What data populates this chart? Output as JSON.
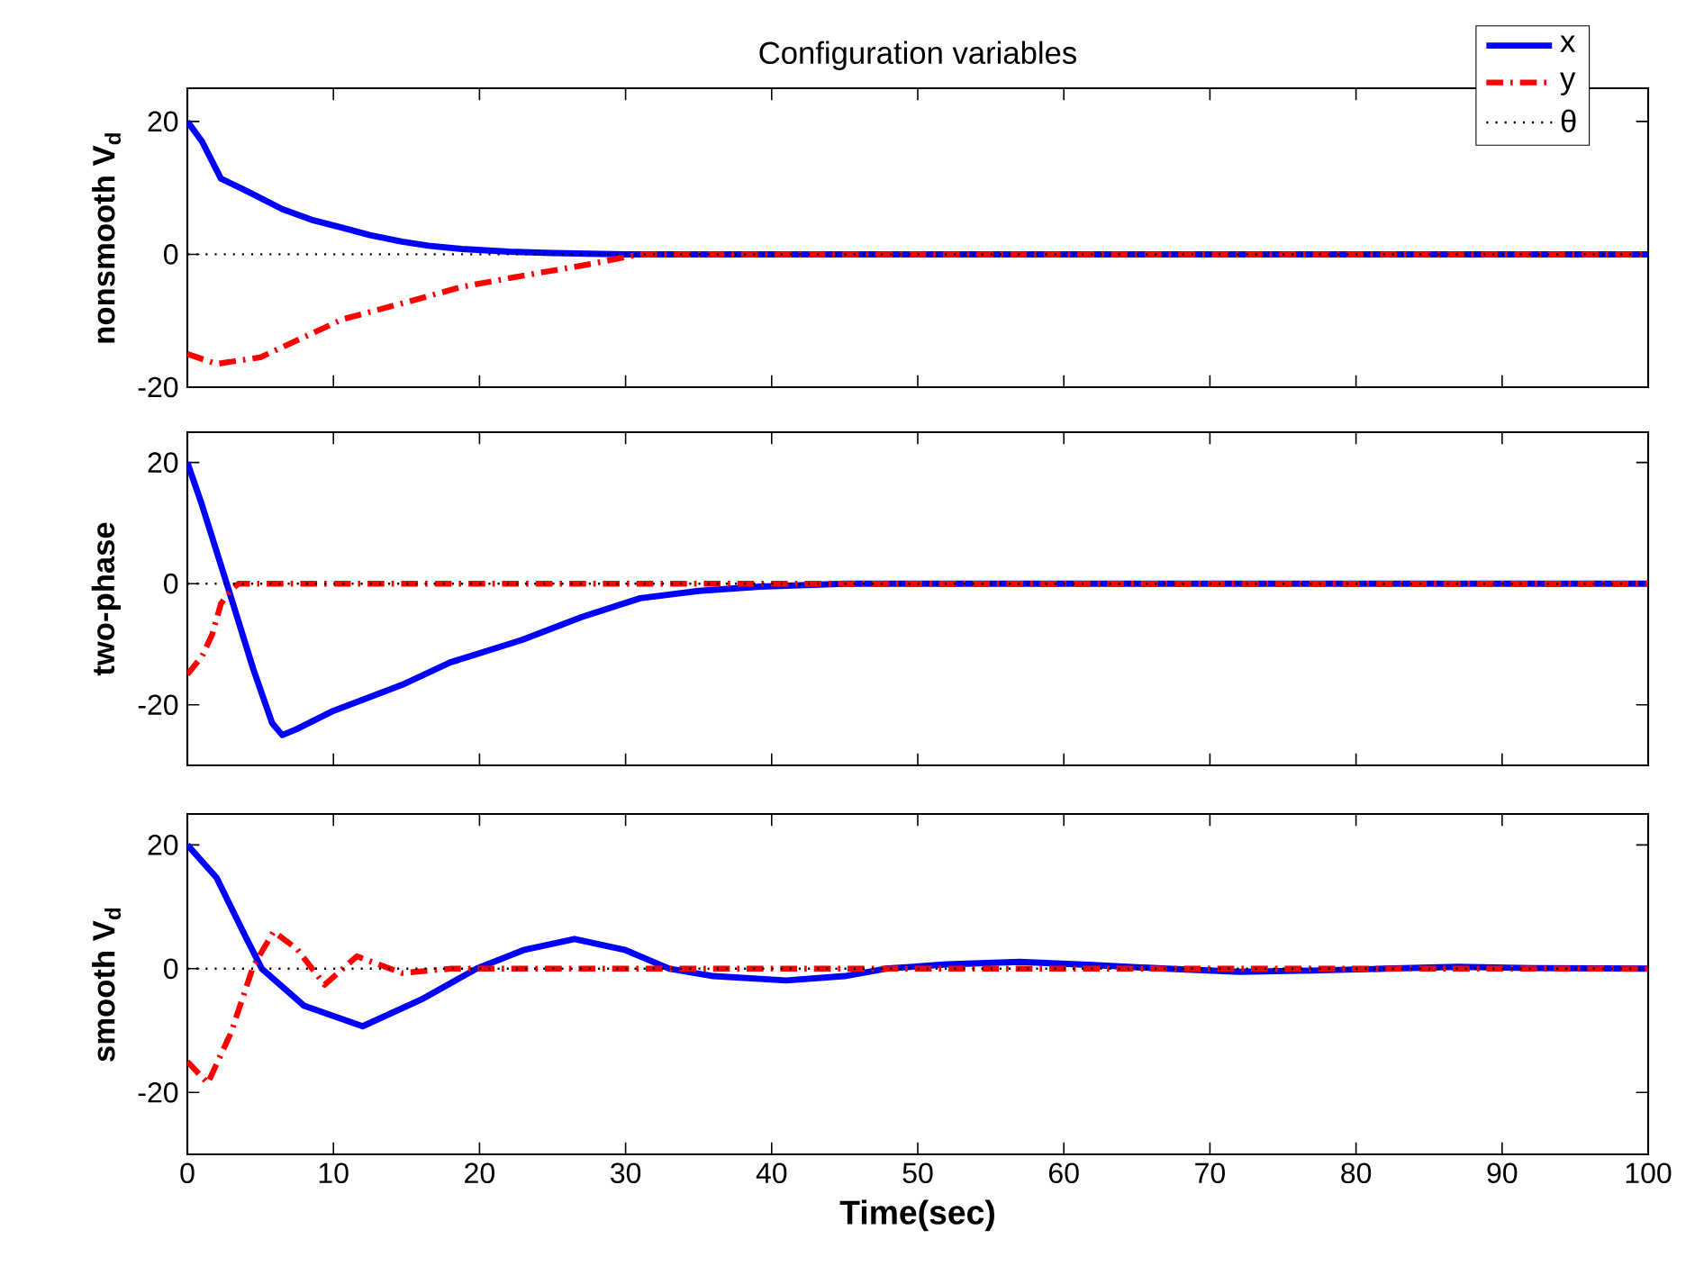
{
  "chart_data": [
    {
      "type": "line",
      "title": "Configuration variables",
      "ylabel": "nonsmooth V$_{d}$",
      "xlim": [
        0,
        100
      ],
      "ylim": [
        -20,
        25
      ],
      "xticks": [
        0,
        10,
        20,
        30,
        40,
        50,
        60,
        70,
        80,
        90,
        100
      ],
      "yticks": [
        -20,
        0,
        20
      ],
      "tick_labels": "y",
      "legend": "top right",
      "grid": false,
      "series": [
        {
          "name": "x",
          "color": "#0000ff",
          "line_style": "solid",
          "x": [
            0,
            1,
            2.3,
            4,
            6.5,
            8.5,
            10.6,
            12.5,
            14.7,
            16.5,
            18.8,
            22,
            25,
            30,
            40,
            100
          ],
          "values": [
            20,
            17,
            11.4,
            9.6,
            6.8,
            5.2,
            4.0,
            2.9,
            1.9,
            1.3,
            0.8,
            0.4,
            0.2,
            0,
            0,
            0
          ]
        },
        {
          "name": "y",
          "color": "#ff0000",
          "line_style": "dashdot",
          "x": [
            0,
            2,
            5,
            10.6,
            15,
            18.8,
            23,
            27,
            31,
            40,
            100
          ],
          "values": [
            -15,
            -16.5,
            -15.5,
            -9.8,
            -7.2,
            -4.9,
            -3.2,
            -1.7,
            0,
            0,
            0
          ]
        },
        {
          "name": "θ",
          "color": "#000000",
          "line_style": "dotted",
          "x": [
            0,
            100
          ],
          "values": [
            0,
            0
          ]
        }
      ]
    },
    {
      "type": "line",
      "ylabel": "two-phase",
      "xlim": [
        0,
        100
      ],
      "ylim": [
        -30,
        25
      ],
      "xticks": [
        0,
        10,
        20,
        30,
        40,
        50,
        60,
        70,
        80,
        90,
        100
      ],
      "yticks": [
        -20,
        0,
        20
      ],
      "tick_labels": "y",
      "grid": false,
      "series": [
        {
          "color": "#0000ff",
          "line_style": "solid",
          "x": [
            0,
            1,
            2.7,
            4.5,
            5.8,
            6.5,
            7.5,
            10,
            14.7,
            18,
            22.9,
            27,
            31,
            35,
            39.2,
            45,
            100
          ],
          "values": [
            20,
            13,
            0,
            -14,
            -23,
            -25,
            -24,
            -21,
            -16.7,
            -13,
            -9.3,
            -5.5,
            -2.4,
            -1.2,
            -0.5,
            0,
            0
          ]
        },
        {
          "color": "#ff0000",
          "line_style": "dashdot",
          "x": [
            0,
            1,
            1.7,
            2.3,
            3,
            3.5,
            5,
            100
          ],
          "values": [
            -15,
            -12,
            -8.4,
            -3.3,
            -1,
            0,
            0,
            0
          ]
        },
        {
          "color": "#000000",
          "line_style": "dotted",
          "x": [
            0,
            100
          ],
          "values": [
            0,
            0
          ]
        }
      ]
    },
    {
      "type": "line",
      "ylabel": "smooth V$_{d}$",
      "xlabel": "Time(sec)",
      "xlim": [
        0,
        100
      ],
      "ylim": [
        -30,
        25
      ],
      "xticks": [
        0,
        10,
        20,
        30,
        40,
        50,
        60,
        70,
        80,
        90,
        100
      ],
      "yticks": [
        -20,
        0,
        20
      ],
      "grid": false,
      "series": [
        {
          "color": "#0000ff",
          "line_style": "solid",
          "x": [
            0,
            2,
            4,
            5.1,
            8,
            12,
            16,
            19.8,
            23,
            26.5,
            30,
            33,
            36,
            41,
            45,
            47.8,
            52,
            57,
            62,
            67,
            72,
            77,
            82,
            87,
            92,
            100
          ],
          "values": [
            20,
            14.7,
            5.1,
            0,
            -6,
            -9.3,
            -5,
            0,
            3,
            4.8,
            3,
            0,
            -1.2,
            -1.9,
            -1.2,
            0,
            0.7,
            1.1,
            0.6,
            0,
            -0.5,
            -0.3,
            0,
            0.3,
            0.1,
            0
          ]
        },
        {
          "color": "#ff0000",
          "line_style": "dashdot",
          "x": [
            0,
            1.4,
            3,
            4.5,
            5.9,
            7.5,
            9.4,
            11.6,
            14.7,
            18,
            100
          ],
          "values": [
            -15,
            -18.5,
            -10.3,
            0.3,
            6,
            3.2,
            -2.6,
            2,
            -0.7,
            0,
            0
          ]
        },
        {
          "color": "#000000",
          "line_style": "dotted",
          "x": [
            0,
            100
          ],
          "values": [
            0,
            0
          ]
        }
      ]
    }
  ]
}
